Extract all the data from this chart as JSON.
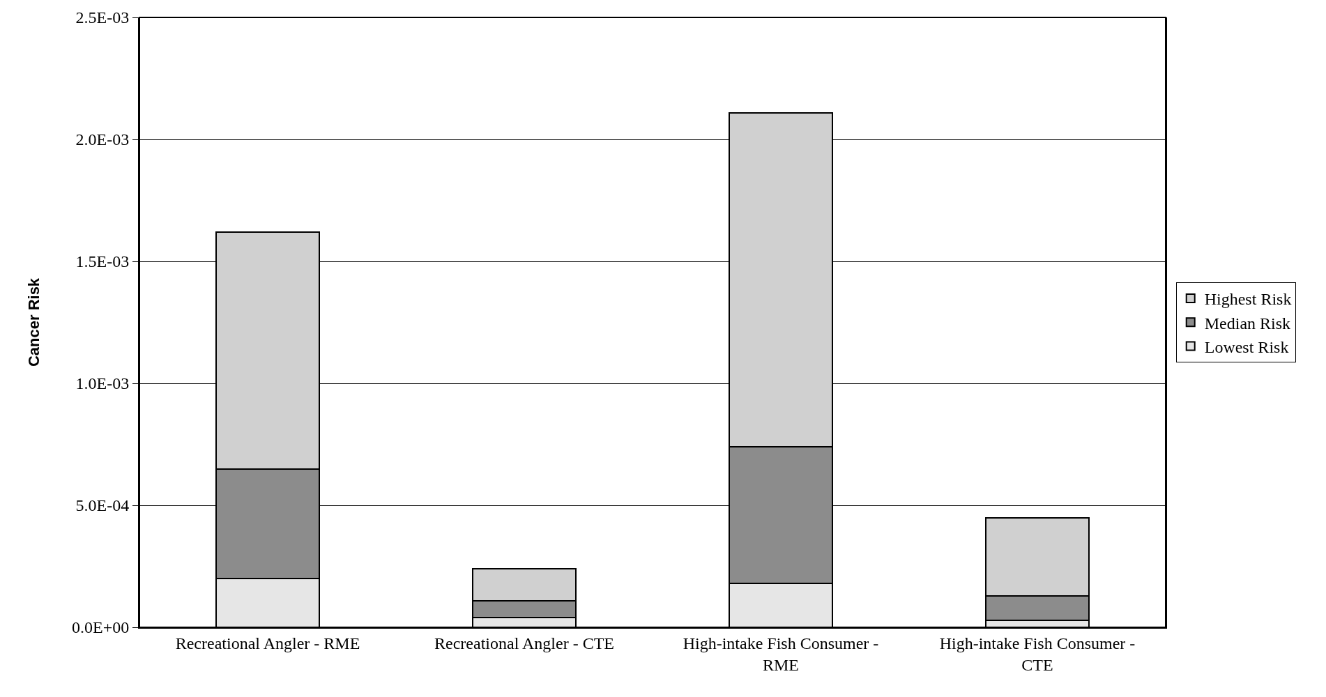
{
  "chart_data": {
    "type": "bar",
    "stacked": true,
    "ylabel": "Cancer Risk",
    "categories": [
      "Recreational Angler - RME",
      "Recreational Angler - CTE",
      "High-intake Fish Consumer - RME",
      "High-intake Fish Consumer - CTE"
    ],
    "series": [
      {
        "name": "Lowest Risk",
        "color": "#e6e6e6",
        "values": [
          0.0002,
          4e-05,
          0.00018,
          3e-05
        ]
      },
      {
        "name": "Median Risk",
        "color": "#8c8c8c",
        "values": [
          0.00045,
          7e-05,
          0.00056,
          0.0001
        ]
      },
      {
        "name": "Highest Risk",
        "color": "#d0d0d0",
        "values": [
          0.00097,
          0.00013,
          0.00137,
          0.00032
        ]
      }
    ],
    "ylim": [
      0,
      0.0025
    ],
    "yticks": [
      {
        "value": 0,
        "label": "0.0E+00"
      },
      {
        "value": 0.0005,
        "label": "5.0E-04"
      },
      {
        "value": 0.001,
        "label": "1.0E-03"
      },
      {
        "value": 0.0015,
        "label": "1.5E-03"
      },
      {
        "value": 0.002,
        "label": "2.0E-03"
      },
      {
        "value": 0.0025,
        "label": "2.5E-03"
      }
    ],
    "grid": "y",
    "legend": "right"
  }
}
